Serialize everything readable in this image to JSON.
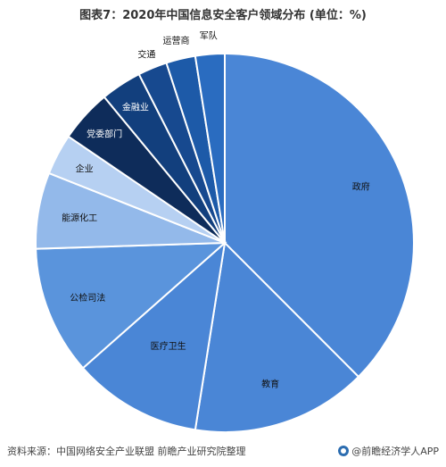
{
  "title": "图表7：2020年中国信息安全客户领域分布 (单位：%)",
  "source": "资料来源：中国网络安全产业联盟 前瞻产业研究院整理",
  "brand": "@前瞻经济学人APP",
  "chart_data": {
    "type": "pie",
    "title": "图表7：2020年中国信息安全客户领域分布 (单位：%)",
    "slices": [
      {
        "label": "政府",
        "value": 37.5,
        "color": "#4a86d6"
      },
      {
        "label": "教育",
        "value": 15.0,
        "color": "#4a86d6"
      },
      {
        "label": "医疗卫生",
        "value": 11.0,
        "color": "#4a86d6"
      },
      {
        "label": "公检司法",
        "value": 11.0,
        "color": "#5a94dc"
      },
      {
        "label": "能源化工",
        "value": 6.5,
        "color": "#93b9ea"
      },
      {
        "label": "企业",
        "value": 3.5,
        "color": "#b6d0f2"
      },
      {
        "label": "党委部门",
        "value": 4.5,
        "color": "#0e2c5a"
      },
      {
        "label": "金融业",
        "value": 3.5,
        "color": "#123f7d"
      },
      {
        "label": "交通",
        "value": 2.5,
        "color": "#17498f"
      },
      {
        "label": "运营商",
        "value": 2.5,
        "color": "#1d5aa8"
      },
      {
        "label": "军队",
        "value": 2.5,
        "color": "#2a6cc0"
      }
    ]
  }
}
